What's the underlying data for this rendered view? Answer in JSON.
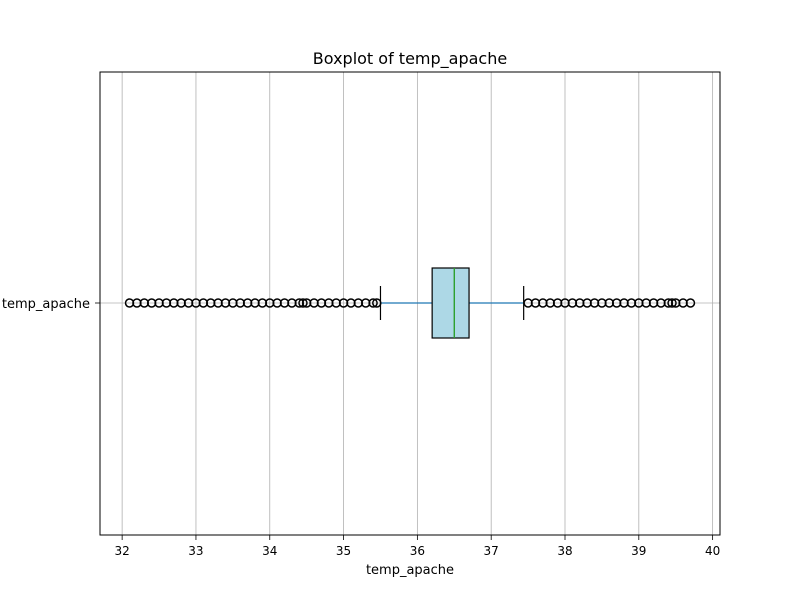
{
  "chart_data": {
    "type": "boxplot",
    "orientation": "horizontal",
    "title": "Boxplot of temp_apache",
    "xlabel": "temp_apache",
    "ylabel": "",
    "xlim": [
      31.7,
      40.1
    ],
    "xticks": [
      32,
      33,
      34,
      35,
      36,
      37,
      38,
      39,
      40
    ],
    "grid": "vertical",
    "categories": [
      "temp_apache"
    ],
    "box": {
      "whisker_low": 35.5,
      "q1": 36.2,
      "median": 36.5,
      "q3": 36.7,
      "whisker_high": 37.44,
      "fill_color": "#add8e6",
      "median_color": "#2ca02c",
      "whisker_color": "#1f77b4"
    },
    "outliers_low": [
      32.1,
      32.2,
      32.3,
      32.4,
      32.5,
      32.6,
      32.7,
      32.8,
      32.9,
      33.0,
      33.1,
      33.2,
      33.3,
      33.4,
      33.5,
      33.6,
      33.7,
      33.8,
      33.9,
      34.0,
      34.1,
      34.2,
      34.3,
      34.4,
      34.45,
      34.5,
      34.6,
      34.7,
      34.8,
      34.9,
      35.0,
      35.1,
      35.2,
      35.3,
      35.4,
      35.45
    ],
    "outliers_high": [
      37.5,
      37.6,
      37.7,
      37.8,
      37.9,
      38.0,
      38.1,
      38.2,
      38.3,
      38.4,
      38.5,
      38.6,
      38.7,
      38.8,
      38.9,
      39.0,
      39.1,
      39.2,
      39.3,
      39.4,
      39.45,
      39.5,
      39.6,
      39.7
    ]
  }
}
